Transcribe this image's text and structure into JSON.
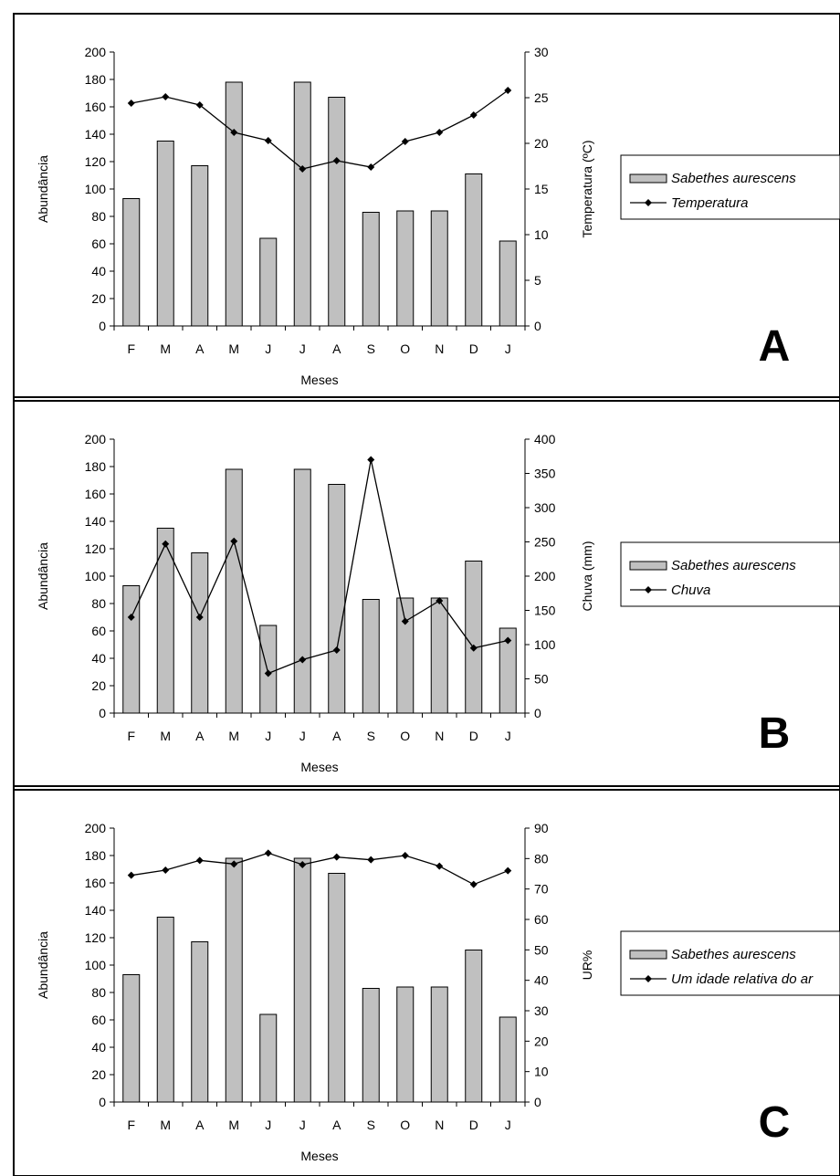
{
  "chart_data": [
    {
      "type": "bar",
      "panel_label": "A",
      "categories": [
        "F",
        "M",
        "A",
        "M",
        "J",
        "J",
        "A",
        "S",
        "O",
        "N",
        "D",
        "J"
      ],
      "xlabel": "Meses",
      "ylabel": "Abundância",
      "ylim": [
        0,
        200
      ],
      "yticks": [
        0,
        20,
        40,
        60,
        80,
        100,
        120,
        140,
        160,
        180,
        200
      ],
      "y2label": "Temperatura (ºC)",
      "y2lim": [
        0,
        30
      ],
      "y2ticks": [
        0,
        5,
        10,
        15,
        20,
        25,
        30
      ],
      "series": [
        {
          "name": "Sabethes aurescens",
          "kind": "bar",
          "axis": "left",
          "values": [
            93,
            135,
            117,
            178,
            64,
            178,
            167,
            83,
            84,
            84,
            111,
            62
          ]
        },
        {
          "name": "Temperatura",
          "kind": "line",
          "axis": "right",
          "values": [
            24.4,
            25.1,
            24.2,
            21.2,
            20.3,
            17.2,
            18.1,
            17.4,
            20.2,
            21.2,
            23.1,
            25.8
          ]
        }
      ],
      "legend": "right",
      "colors": {
        "bar": "#c0c0c0",
        "line": "#000000"
      }
    },
    {
      "type": "bar",
      "panel_label": "B",
      "categories": [
        "F",
        "M",
        "A",
        "M",
        "J",
        "J",
        "A",
        "S",
        "O",
        "N",
        "D",
        "J"
      ],
      "xlabel": "Meses",
      "ylabel": "Abundância",
      "ylim": [
        0,
        200
      ],
      "yticks": [
        0,
        20,
        40,
        60,
        80,
        100,
        120,
        140,
        160,
        180,
        200
      ],
      "y2label": "Chuva (mm)",
      "y2lim": [
        0,
        400
      ],
      "y2ticks": [
        0,
        50,
        100,
        150,
        200,
        250,
        300,
        350,
        400
      ],
      "series": [
        {
          "name": "Sabethes aurescens",
          "kind": "bar",
          "axis": "left",
          "values": [
            93,
            135,
            117,
            178,
            64,
            178,
            167,
            83,
            84,
            84,
            111,
            62
          ]
        },
        {
          "name": "Chuva",
          "kind": "line",
          "axis": "right",
          "values": [
            140,
            247,
            140,
            251,
            58,
            78,
            92,
            370,
            134,
            164,
            95,
            106
          ]
        }
      ],
      "legend": "right",
      "colors": {
        "bar": "#c0c0c0",
        "line": "#000000"
      }
    },
    {
      "type": "bar",
      "panel_label": "C",
      "categories": [
        "F",
        "M",
        "A",
        "M",
        "J",
        "J",
        "A",
        "S",
        "O",
        "N",
        "D",
        "J"
      ],
      "xlabel": "Meses",
      "ylabel": "Abundância",
      "ylim": [
        0,
        200
      ],
      "yticks": [
        0,
        20,
        40,
        60,
        80,
        100,
        120,
        140,
        160,
        180,
        200
      ],
      "y2label": "UR%",
      "y2lim": [
        0,
        90
      ],
      "y2ticks": [
        0,
        10,
        20,
        30,
        40,
        50,
        60,
        70,
        80,
        90
      ],
      "series": [
        {
          "name": "Sabethes aurescens",
          "kind": "bar",
          "axis": "left",
          "values": [
            93,
            135,
            117,
            178,
            64,
            178,
            167,
            83,
            84,
            84,
            111,
            62
          ]
        },
        {
          "name": "Um idade relativa do ar",
          "kind": "line",
          "axis": "right",
          "values": [
            74.5,
            76.2,
            79.4,
            78.2,
            81.8,
            78,
            80.5,
            79.6,
            81,
            77.5,
            71.5,
            76
          ]
        }
      ],
      "legend": "right",
      "colors": {
        "bar": "#c0c0c0",
        "line": "#000000"
      }
    }
  ]
}
